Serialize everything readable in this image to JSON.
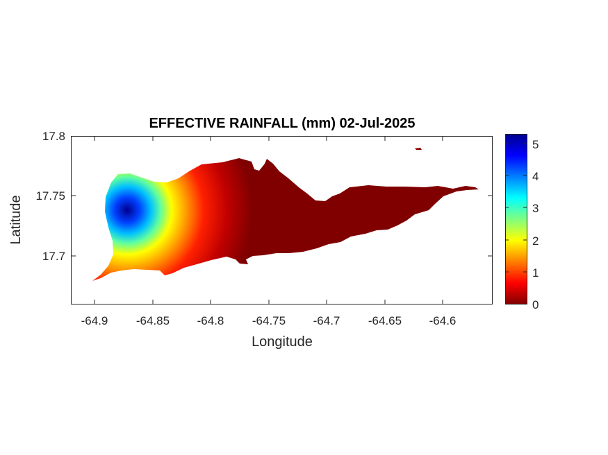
{
  "title": "EFFECTIVE RAINFALL (mm) 02-Jul-2025",
  "xlabel": "Longitude",
  "ylabel": "Latitude",
  "x_ticks": [
    "-64.9",
    "-64.85",
    "-64.8",
    "-64.75",
    "-64.7",
    "-64.65",
    "-64.6"
  ],
  "y_ticks": [
    "17.8",
    "17.75",
    "17.7"
  ],
  "colorbar": {
    "ticks": [
      "5",
      "4",
      "3",
      "2",
      "1",
      "0"
    ],
    "colormap": "jet",
    "range": [
      0,
      5.3
    ]
  },
  "chart_data": {
    "type": "heatmap",
    "title": "EFFECTIVE RAINFALL (mm) 02-Jul-2025",
    "xlabel": "Longitude",
    "ylabel": "Latitude",
    "xlim": [
      -64.92,
      -64.56
    ],
    "ylim": [
      17.665,
      17.8
    ],
    "value_range": [
      0,
      5.3
    ],
    "colormap": "jet",
    "grid": false,
    "peak": {
      "lon": -64.87,
      "lat": 17.736,
      "value": 5.3
    },
    "profile_along_longitude": [
      {
        "lon": -64.87,
        "value": 5.3
      },
      {
        "lon": -64.85,
        "value": 2.2
      },
      {
        "lon": -64.83,
        "value": 1.3
      },
      {
        "lon": -64.8,
        "value": 0.6
      },
      {
        "lon": -64.77,
        "value": 0.1
      },
      {
        "lon": -64.7,
        "value": 0
      },
      {
        "lon": -64.58,
        "value": 0
      }
    ]
  }
}
